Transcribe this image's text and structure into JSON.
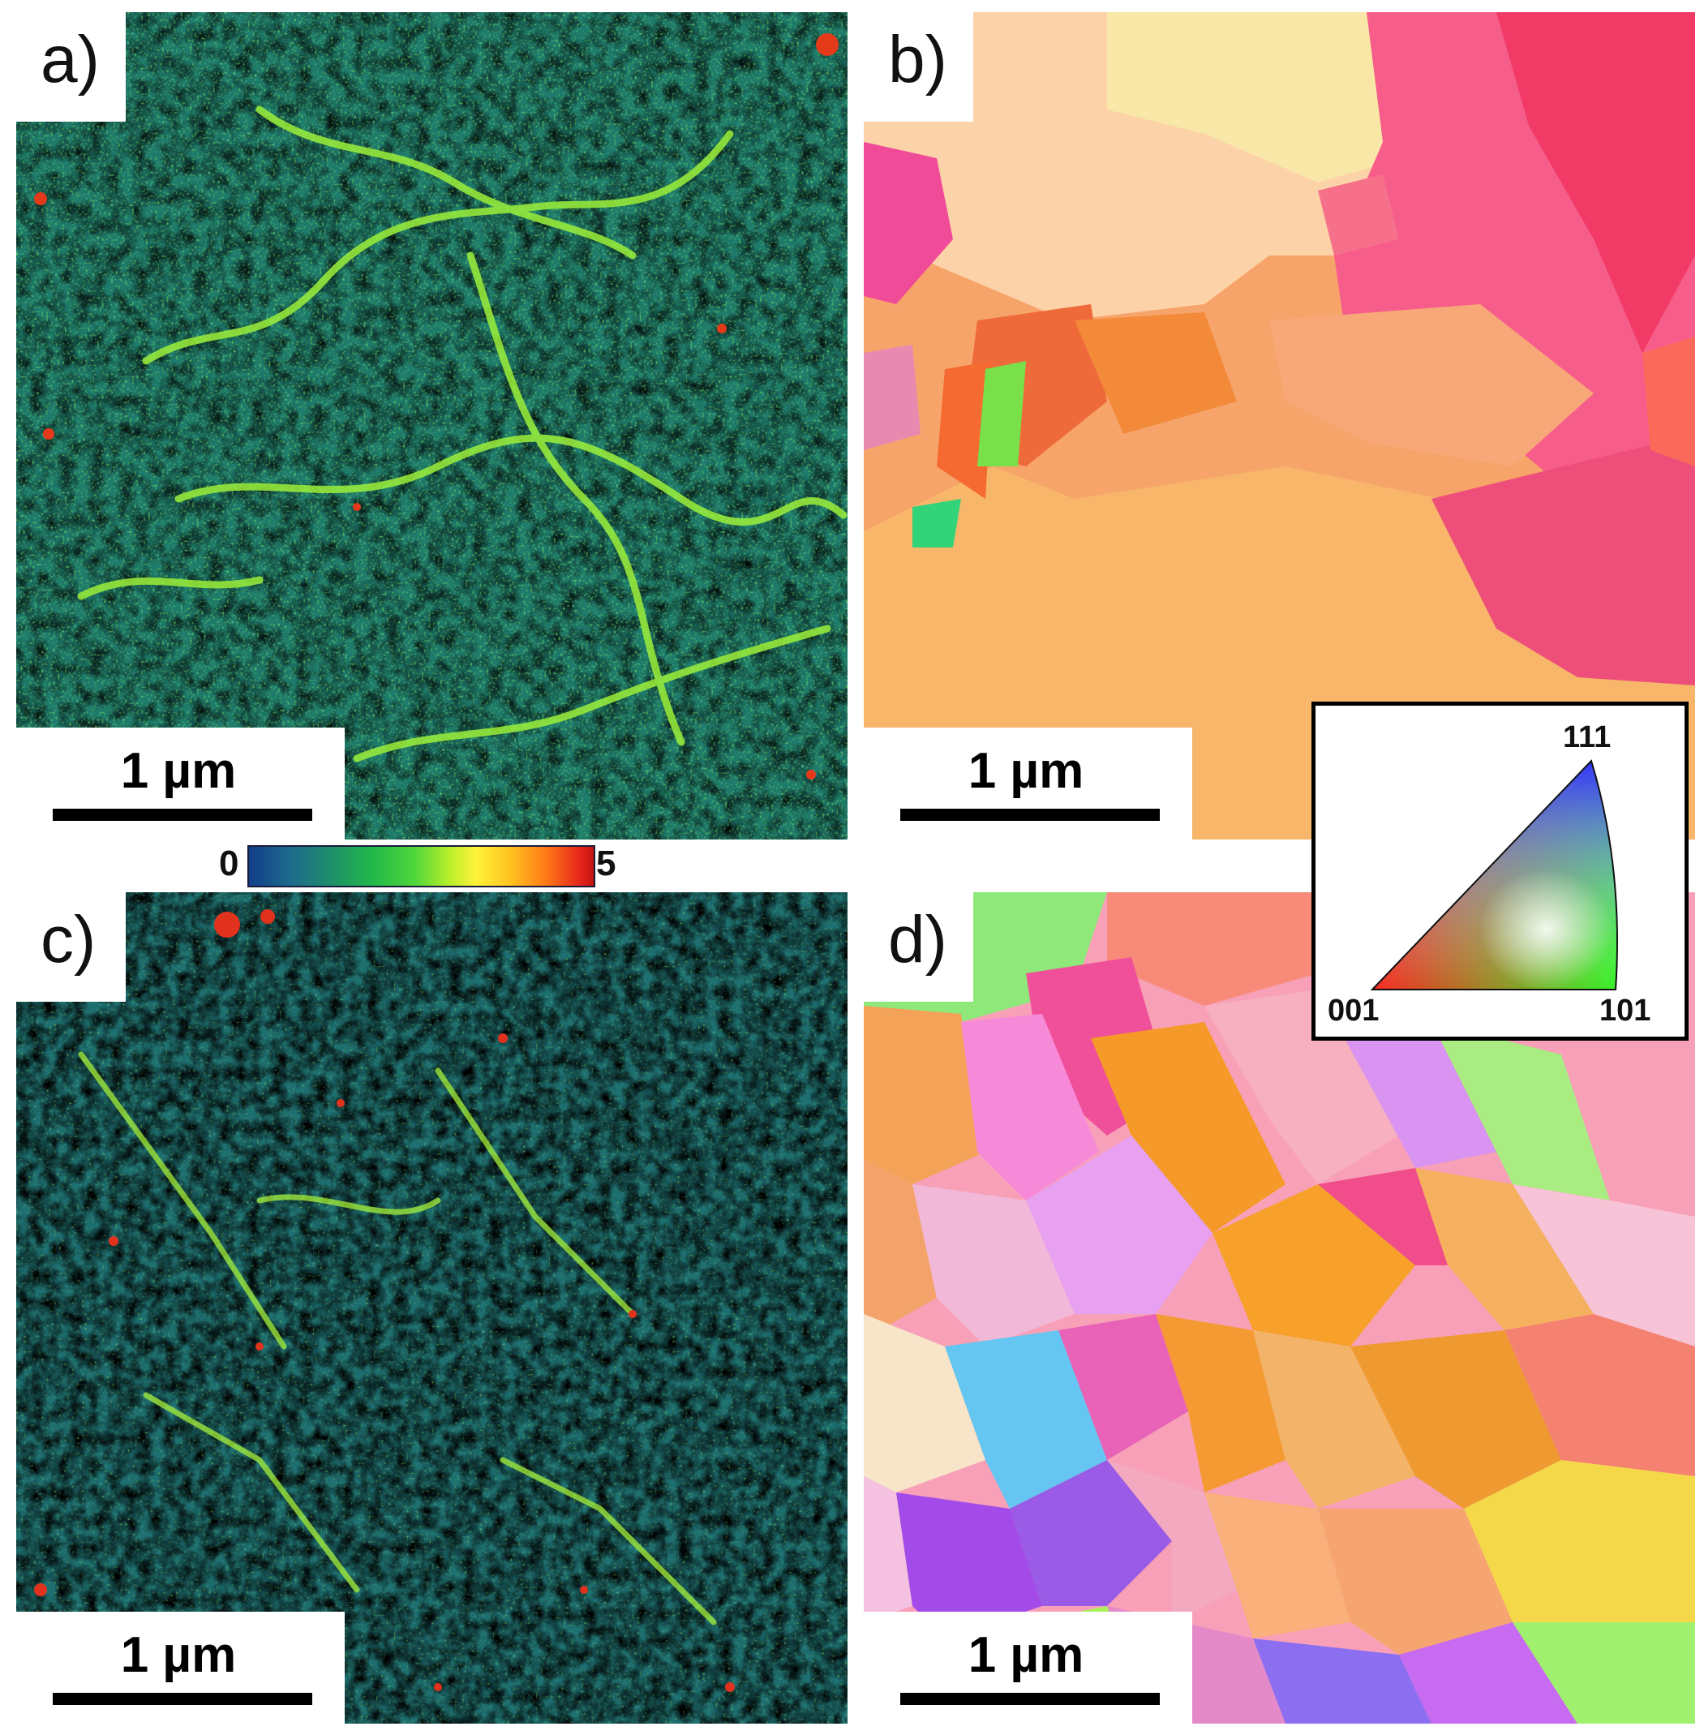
{
  "panels": [
    {
      "id": "a",
      "label": "a)",
      "type": "kernel-average-misorientation-map",
      "scalebar": "1 µm"
    },
    {
      "id": "b",
      "label": "b)",
      "type": "inverse-pole-figure-map",
      "scalebar": "1 µm"
    },
    {
      "id": "c",
      "label": "c)",
      "type": "kernel-average-misorientation-map",
      "scalebar": "1 µm"
    },
    {
      "id": "d",
      "label": "d)",
      "type": "inverse-pole-figure-map",
      "scalebar": "1 µm"
    }
  ],
  "colorbar": {
    "min": "0",
    "max": "5",
    "colors": [
      "#123d8a",
      "#22b94a",
      "#fff23a",
      "#ff7a17",
      "#c2140f"
    ]
  },
  "ipf_key": {
    "top": "111",
    "left": "001",
    "right": "101"
  }
}
